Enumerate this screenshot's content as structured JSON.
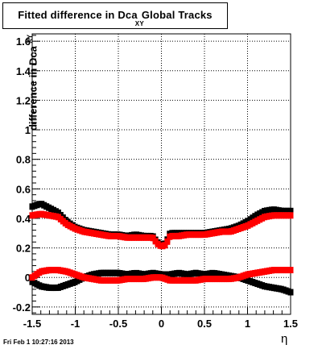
{
  "title": {
    "main": "Fitted difference in Dca",
    "sub": "XY",
    "tail": "Global Tracks"
  },
  "ylabel": {
    "main": "difference in Dca",
    "sub": "XY"
  },
  "xlabel": "η",
  "timestamp": "Fri Feb  1 10:27:16 2013",
  "chart_data": {
    "type": "scatter",
    "title": "Fitted difference in Dca XY Global Tracks",
    "xlabel": "η",
    "ylabel": "difference in Dca XY",
    "xlim": [
      -1.5,
      1.5
    ],
    "ylim": [
      -0.25,
      1.65
    ],
    "xticks": [
      -1.5,
      -1,
      -0.5,
      0,
      0.5,
      1,
      1.5
    ],
    "xtick_labels": [
      "-1.5",
      "-1",
      "-0.5",
      "0",
      "0.5",
      "1",
      "1.5"
    ],
    "yticks": [
      -0.2,
      0,
      0.2,
      0.4,
      0.6,
      0.8,
      1,
      1.2,
      1.4,
      1.6
    ],
    "ytick_labels": [
      "-0.2",
      "0",
      "0.2",
      "0.4",
      "0.6",
      "0.8",
      "1",
      "1.2",
      "1.4",
      "1.6"
    ],
    "grid": true,
    "colors": {
      "series_a": "#000000",
      "series_b": "#ff0000"
    },
    "series": [
      {
        "key": "black_upper",
        "x": [
          -1.5,
          -1.4,
          -1.3,
          -1.2,
          -1.1,
          -1.0,
          -0.9,
          -0.8,
          -0.7,
          -0.6,
          -0.5,
          -0.4,
          -0.3,
          -0.2,
          -0.1,
          -0.05,
          0.0,
          0.05,
          0.1,
          0.2,
          0.3,
          0.4,
          0.5,
          0.6,
          0.7,
          0.8,
          0.9,
          1.0,
          1.1,
          1.2,
          1.3,
          1.4,
          1.5
        ],
        "y": [
          0.48,
          0.5,
          0.47,
          0.44,
          0.38,
          0.34,
          0.32,
          0.31,
          0.3,
          0.29,
          0.29,
          0.28,
          0.29,
          0.28,
          0.28,
          0.24,
          0.22,
          0.23,
          0.3,
          0.3,
          0.3,
          0.3,
          0.3,
          0.31,
          0.32,
          0.33,
          0.35,
          0.38,
          0.42,
          0.45,
          0.46,
          0.45,
          0.45
        ]
      },
      {
        "key": "red_upper",
        "x": [
          -1.5,
          -1.4,
          -1.3,
          -1.2,
          -1.1,
          -1.0,
          -0.9,
          -0.8,
          -0.7,
          -0.6,
          -0.5,
          -0.4,
          -0.3,
          -0.2,
          -0.1,
          -0.05,
          0.0,
          0.05,
          0.1,
          0.2,
          0.3,
          0.4,
          0.5,
          0.6,
          0.7,
          0.8,
          0.9,
          1.0,
          1.1,
          1.2,
          1.3,
          1.4,
          1.5
        ],
        "y": [
          0.42,
          0.43,
          0.42,
          0.41,
          0.36,
          0.33,
          0.31,
          0.3,
          0.29,
          0.28,
          0.28,
          0.27,
          0.27,
          0.27,
          0.27,
          0.23,
          0.21,
          0.22,
          0.28,
          0.28,
          0.29,
          0.29,
          0.29,
          0.3,
          0.31,
          0.31,
          0.33,
          0.35,
          0.38,
          0.41,
          0.42,
          0.42,
          0.42
        ]
      },
      {
        "key": "black_lower",
        "x": [
          -1.5,
          -1.4,
          -1.3,
          -1.2,
          -1.1,
          -1.0,
          -0.9,
          -0.8,
          -0.7,
          -0.6,
          -0.5,
          -0.4,
          -0.3,
          -0.2,
          -0.1,
          0.0,
          0.1,
          0.2,
          0.3,
          0.4,
          0.5,
          0.6,
          0.7,
          0.8,
          0.9,
          1.0,
          1.1,
          1.2,
          1.3,
          1.4,
          1.5
        ],
        "y": [
          -0.03,
          -0.06,
          -0.07,
          -0.07,
          -0.05,
          -0.03,
          0.0,
          0.02,
          0.03,
          0.03,
          0.03,
          0.02,
          0.03,
          0.02,
          0.03,
          0.02,
          0.02,
          0.03,
          0.02,
          0.03,
          0.02,
          0.03,
          0.02,
          0.01,
          0.0,
          -0.02,
          -0.04,
          -0.06,
          -0.07,
          -0.08,
          -0.1
        ]
      },
      {
        "key": "red_lower",
        "x": [
          -1.5,
          -1.4,
          -1.3,
          -1.2,
          -1.1,
          -1.0,
          -0.9,
          -0.8,
          -0.7,
          -0.6,
          -0.5,
          -0.4,
          -0.3,
          -0.2,
          -0.1,
          0.0,
          0.1,
          0.2,
          0.3,
          0.4,
          0.5,
          0.6,
          0.7,
          0.8,
          0.9,
          1.0,
          1.1,
          1.2,
          1.3,
          1.4,
          1.5
        ],
        "y": [
          0.0,
          0.04,
          0.05,
          0.05,
          0.04,
          0.02,
          0.0,
          -0.01,
          -0.02,
          -0.02,
          -0.02,
          -0.01,
          -0.01,
          -0.01,
          0.0,
          0.0,
          -0.02,
          -0.02,
          -0.02,
          -0.02,
          -0.01,
          -0.01,
          -0.01,
          -0.01,
          0.0,
          0.02,
          0.03,
          0.04,
          0.05,
          0.05,
          0.05
        ]
      }
    ]
  }
}
